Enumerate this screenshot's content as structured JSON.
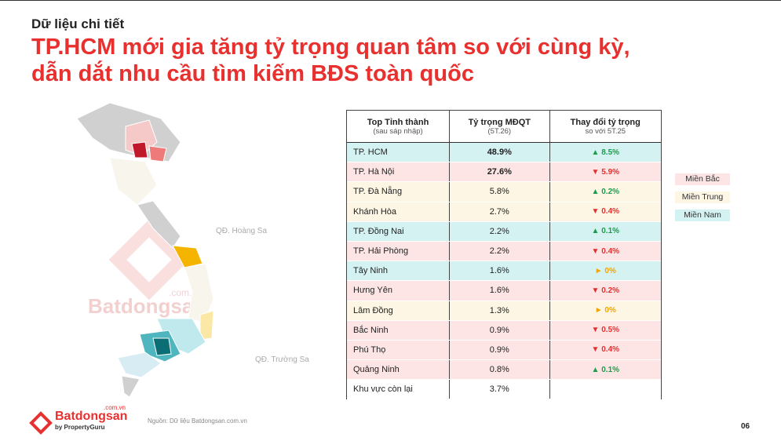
{
  "header": {
    "kicker": "Dữ liệu chi tiết",
    "title_lines": [
      "TP.HCM mới gia tăng tỷ trọng quan tâm so với cùng kỳ,",
      "dẫn dắt nhu cầu tìm kiếm BĐS toàn quốc"
    ]
  },
  "map": {
    "labels": [
      "QĐ. Hoàng Sa",
      "QĐ. Trường Sa"
    ]
  },
  "watermark": {
    "name": "Batdongsan",
    "suffix": ".com.vn"
  },
  "table": {
    "columns": [
      {
        "title": "Top Tỉnh thành",
        "subtitle": "(sau sáp nhập)"
      },
      {
        "title": "Tỷ trọng MĐQT",
        "subtitle": "(5T.26)"
      },
      {
        "title": "Thay đổi tỷ trọng",
        "subtitle": "so với 5T.25"
      }
    ],
    "rows": [
      {
        "name": "TP. HCM",
        "share": "48.9%",
        "change": "▲ 8.5%",
        "bold": true,
        "color": "#d5f2f3",
        "trend_color": "#1a9c4a"
      },
      {
        "name": "TP. Hà Nội",
        "share": "27.6%",
        "change": "▼ 5.9%",
        "bold": true,
        "color": "#fde5e5",
        "trend_color": "#e03030"
      },
      {
        "name": "TP. Đà Nẵng",
        "share": "5.8%",
        "change": "▲ 0.2%",
        "bold": false,
        "color": "#fdf6e4",
        "trend_color": "#1a9c4a"
      },
      {
        "name": "Khánh Hòa",
        "share": "2.7%",
        "change": "▼ 0.4%",
        "bold": false,
        "color": "#fdf6e4",
        "trend_color": "#e03030"
      },
      {
        "name": "TP. Đồng Nai",
        "share": "2.2%",
        "change": "▲ 0.1%",
        "bold": false,
        "color": "#d5f2f3",
        "trend_color": "#1a9c4a"
      },
      {
        "name": "TP. Hải Phòng",
        "share": "2.2%",
        "change": "▼ 0.4%",
        "bold": false,
        "color": "#fde5e5",
        "trend_color": "#e03030"
      },
      {
        "name": "Tây Ninh",
        "share": "1.6%",
        "change": "► 0%",
        "bold": false,
        "color": "#d5f2f3",
        "trend_color": "#f0a500"
      },
      {
        "name": "Hưng Yên",
        "share": "1.6%",
        "change": "▼ 0.2%",
        "bold": false,
        "color": "#fde5e5",
        "trend_color": "#e03030"
      },
      {
        "name": "Lâm Đồng",
        "share": "1.3%",
        "change": "► 0%",
        "bold": false,
        "color": "#fdf6e4",
        "trend_color": "#f0a500"
      },
      {
        "name": "Bắc Ninh",
        "share": "0.9%",
        "change": "▼ 0.5%",
        "bold": false,
        "color": "#fde5e5",
        "trend_color": "#e03030"
      },
      {
        "name": "Phú Thọ",
        "share": "0.9%",
        "change": "▼ 0.4%",
        "bold": false,
        "color": "#fde5e5",
        "trend_color": "#e03030"
      },
      {
        "name": "Quảng Ninh",
        "share": "0.8%",
        "change": "▲ 0.1%",
        "bold": false,
        "color": "#fde5e5",
        "trend_color": "#1a9c4a"
      },
      {
        "name": "Khu vực còn lại",
        "share": "3.7%",
        "change": "",
        "bold": false,
        "color": "#ffffff",
        "trend_color": "#333333"
      }
    ]
  },
  "legend": [
    {
      "name": "Miền Bắc",
      "color": "#fde5e5"
    },
    {
      "name": "Miền Trung",
      "color": "#fdf6e4"
    },
    {
      "name": "Miền Nam",
      "color": "#d5f2f3"
    }
  ],
  "footer": {
    "brand": "Batdongsan",
    "brand_suffix": ".com.vn",
    "byline": "by PropertyGuru",
    "source": "Nguồn: Dữ liệu Batdongsan.com.vn",
    "page": "06"
  }
}
